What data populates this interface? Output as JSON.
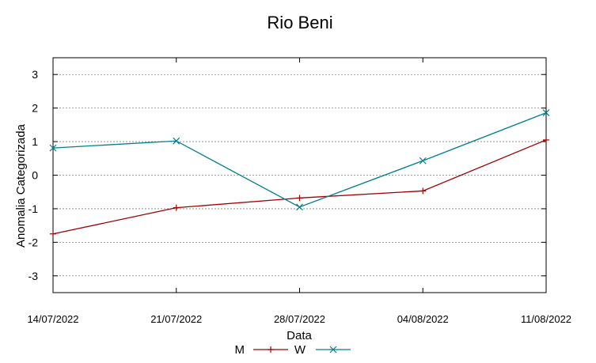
{
  "chart_data": {
    "type": "line",
    "title": "Rio Beni",
    "xlabel": "Data",
    "ylabel": "Anomalia Categorizada",
    "categories": [
      "14/07/2022",
      "21/07/2022",
      "28/07/2022",
      "04/08/2022",
      "11/08/2022"
    ],
    "ylim": [
      -3.5,
      3.5
    ],
    "yticks": [
      -3,
      -2,
      -1,
      0,
      1,
      2,
      3
    ],
    "ytick_labels": [
      "-3",
      "-2",
      "-1",
      "0",
      "1",
      "2",
      "3"
    ],
    "grid": true,
    "legend_position": "bottom",
    "series": [
      {
        "name": "M",
        "color": "#a00000",
        "marker": "plus",
        "values": [
          -1.75,
          -0.97,
          -0.68,
          -0.47,
          1.05
        ]
      },
      {
        "name": "W",
        "color": "#00808a",
        "marker": "cross",
        "values": [
          0.81,
          1.02,
          -0.95,
          0.43,
          1.86
        ]
      }
    ]
  }
}
